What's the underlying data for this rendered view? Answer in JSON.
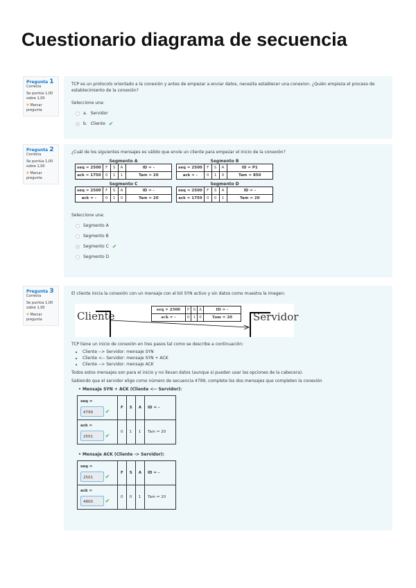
{
  "title": "Cuestionario diagrama de secuencia",
  "questions": [
    {
      "label": "Pregunta",
      "num": "1",
      "status": "Correcta",
      "score": "Se puntúa 1,00 sobre 1,00",
      "flag": "Marcar pregunta",
      "text": "TCP es un protocolo orientado a la conexión y antes de empezar a enviar datos, necesita establecer una conexion. ¿Quién empieza el proceso de establecimiento de la conexión?",
      "prompt": "Seleccione una:",
      "options": [
        {
          "letter": "a.",
          "label": "Servidor",
          "selected": false,
          "correct": false
        },
        {
          "letter": "b.",
          "label": "Cliente",
          "selected": true,
          "correct": true
        }
      ]
    },
    {
      "label": "Pregunta",
      "num": "2",
      "status": "Correcta",
      "score": "Se puntúa 1,00 sobre 1,00",
      "flag": "Marcar pregunta",
      "text": "¿Cuál de los siguientes mensajes es válido que envíe un cliente para empezar el inicio de la conexión?",
      "segments": [
        {
          "title": "Segmento A",
          "row1": [
            "seq = 2500",
            "F",
            "S",
            "A",
            "ID = -"
          ],
          "row2": [
            "ack = 1750",
            "0",
            "1",
            "1",
            "Tam = 20"
          ]
        },
        {
          "title": "Segmento B",
          "row1": [
            "seq = 2500",
            "F",
            "S",
            "A",
            "ID = P1"
          ],
          "row2": [
            "ack = -",
            "0",
            "1",
            "0",
            "Tam = 850"
          ]
        },
        {
          "title": "Segmento C",
          "row1": [
            "seq = 2500",
            "F",
            "S",
            "A",
            "ID = -"
          ],
          "row2": [
            "ack = -",
            "0",
            "1",
            "0",
            "Tam = 20"
          ]
        },
        {
          "title": "Segmento D",
          "row1": [
            "seq = 2500",
            "F",
            "S",
            "A",
            "ID = -"
          ],
          "row2": [
            "ack = 1750",
            "0",
            "0",
            "1",
            "Tam = 20"
          ]
        }
      ],
      "prompt": "Seleccione una:",
      "options": [
        {
          "label": "Segmento A",
          "selected": false,
          "correct": false
        },
        {
          "label": "Segmento B",
          "selected": false,
          "correct": false
        },
        {
          "label": "Segmento C",
          "selected": true,
          "correct": true
        },
        {
          "label": "Segmento D",
          "selected": false,
          "correct": false
        }
      ]
    },
    {
      "label": "Pregunta",
      "num": "3",
      "status": "Correcta",
      "score": "Se puntúa 1,00 sobre 1,00",
      "flag": "Marcar pregunta",
      "text": "El cliente inicia la conexión con un mensaje con el bit SYN activo y sin datos como muestra la imagen:",
      "diagram": {
        "left": "Cliente",
        "right": "Servidor",
        "row1": [
          "seq = 2500",
          "F",
          "S",
          "A",
          "ID = -"
        ],
        "row2": [
          "ack = -",
          "0",
          "1",
          "0",
          "Tam = 20"
        ]
      },
      "text2": "TCP tiene un inicio de conexión en tres pasos tal como se describe a continuación:",
      "steps": [
        "Cliente --> Servidor: mensaje SYN",
        "Cliente <-- Servidor: mensaje SYN + ACK",
        "Cliente --> Servidor: mensaje ACK"
      ],
      "text3": "Todos estos mensajes son para el inicio y no llevan datos (aunque si pueden usar las opciones de la cabecera).",
      "text4": "Sabiendo que el servidor elige como número de secuencia 4799, complete los dos mensajes que completen la conexión",
      "msgs": [
        {
          "title": "Mensaje SYN + ACK (Cliente <-- Servidor):",
          "seq_label": "seq =",
          "seq": "4799",
          "ack_label": "ack =",
          "ack": "2501",
          "h": [
            "F",
            "S",
            "A",
            "ID = -"
          ],
          "v": [
            "0",
            "1",
            "1",
            "Tam = 20"
          ]
        },
        {
          "title": "Mensaje ACK (Cliente -> Servidor):",
          "seq_label": "seq =",
          "seq": "2501",
          "ack_label": "ack =",
          "ack": "4800",
          "h": [
            "F",
            "S",
            "A",
            "ID = -"
          ],
          "v": [
            "0",
            "0",
            "1",
            "Tam = 20"
          ]
        }
      ]
    }
  ]
}
